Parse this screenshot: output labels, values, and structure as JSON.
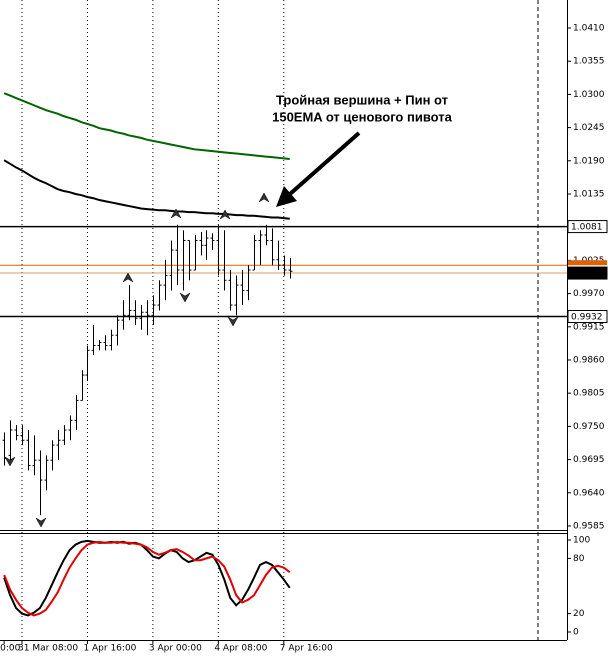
{
  "chart_data": {
    "type": "ohlc",
    "annotation": [
      "Тройная вершина + Пин от",
      "150EMA от ценового пивота"
    ],
    "categories": [
      "0:00",
      null,
      null,
      "31 Mar 08:00",
      null,
      null,
      null,
      null,
      null,
      null,
      null,
      null,
      null,
      null,
      "1 Apr 16:00",
      null,
      null,
      null,
      null,
      null,
      null,
      null,
      null,
      null,
      null,
      "3 Apr 00:00",
      null,
      null,
      null,
      null,
      null,
      null,
      null,
      null,
      null,
      null,
      "4 Apr 08:00",
      null,
      null,
      null,
      null,
      null,
      null,
      null,
      null,
      null,
      null,
      "7 Apr 16:00",
      null
    ],
    "open": [
      0.9727,
      0.9702,
      0.9744,
      0.9735,
      0.9727,
      0.9685,
      0.9694,
      0.9661,
      0.9694,
      0.9719,
      0.9727,
      0.9744,
      0.976,
      0.9793,
      0.9835,
      0.9876,
      0.9884,
      0.9889,
      0.9884,
      0.9901,
      0.9926,
      0.9934,
      0.9942,
      0.9929,
      0.9939,
      0.9934,
      0.9951,
      0.9984,
      1.0,
      1.0042,
      1.0009,
      1.0058,
      1.0009,
      1.0058,
      1.005,
      1.0062,
      1.0058,
      1.0009,
      0.9992,
      0.9951,
      0.9984,
      0.9975,
      1.0009,
      1.0058,
      1.0067,
      1.0058,
      1.0026,
      1.0017,
      1.0009
    ],
    "high": [
      0.974,
      0.976,
      0.9752,
      0.9752,
      0.9744,
      0.9735,
      0.971,
      0.9702,
      0.9727,
      0.9744,
      0.9752,
      0.9768,
      0.9802,
      0.9843,
      0.9884,
      0.9918,
      0.9893,
      0.9901,
      0.991,
      0.9934,
      0.9959,
      0.9984,
      0.9959,
      0.9951,
      0.9959,
      0.9967,
      0.9992,
      1.0026,
      1.0058,
      1.0084,
      1.0075,
      1.0058,
      1.0067,
      1.0072,
      1.0075,
      1.007,
      1.0084,
      1.0075,
      1.0009,
      1.0,
      1.0009,
      1.0017,
      1.0067,
      1.0075,
      1.0084,
      1.0078,
      1.0058,
      1.0033,
      1.0029
    ],
    "low": [
      0.9685,
      0.9694,
      0.9727,
      0.9719,
      0.9677,
      0.9669,
      0.9603,
      0.9644,
      0.9677,
      0.9694,
      0.9719,
      0.9727,
      0.9744,
      0.9793,
      0.9826,
      0.9868,
      0.9876,
      0.9876,
      0.9876,
      0.9884,
      0.991,
      0.9926,
      0.9918,
      0.991,
      0.9901,
      0.9918,
      0.9942,
      0.9959,
      0.9975,
      0.9984,
      0.9975,
      0.9992,
      1.0009,
      1.0033,
      1.0026,
      1.0042,
      1.0,
      0.9975,
      0.9942,
      0.9934,
      0.9951,
      0.9959,
      1.0009,
      1.0017,
      1.005,
      1.0017,
      1.0009,
      1.0,
      0.9995
    ],
    "close": [
      0.9697,
      0.9744,
      0.9735,
      0.9727,
      0.9685,
      0.9694,
      0.9661,
      0.9694,
      0.9719,
      0.9727,
      0.9744,
      0.976,
      0.9793,
      0.9835,
      0.9876,
      0.9884,
      0.9889,
      0.9884,
      0.9901,
      0.9926,
      0.9934,
      0.9942,
      0.9929,
      0.9939,
      0.9934,
      0.9951,
      0.9984,
      1.0,
      1.0042,
      1.0009,
      1.0058,
      1.0009,
      1.0058,
      1.005,
      1.0062,
      1.0058,
      1.0009,
      0.9992,
      0.9951,
      0.9984,
      0.9975,
      1.0009,
      1.0058,
      1.0067,
      1.0058,
      1.0026,
      1.0017,
      1.0009,
      1.0007
    ],
    "color": "#000000",
    "overlays": [
      {
        "color": "#006400",
        "values": [
          1.0302,
          1.0298,
          1.0294,
          1.029,
          1.0286,
          1.0282,
          1.0278,
          1.0274,
          1.0271,
          1.0268,
          1.0264,
          1.0261,
          1.0258,
          1.0254,
          1.0251,
          1.0248,
          1.0244,
          1.0242,
          1.024,
          1.0237,
          1.0235,
          1.0232,
          1.023,
          1.0228,
          1.0225,
          1.0223,
          1.0221,
          1.0219,
          1.0217,
          1.0215,
          1.0213,
          1.0211,
          1.0209,
          1.0208,
          1.0207,
          1.0206,
          1.0205,
          1.0204,
          1.0203,
          1.0202,
          1.0201,
          1.02,
          1.0199,
          1.0198,
          1.0197,
          1.0196,
          1.0195,
          1.0194,
          1.0193
        ]
      },
      {
        "color": "#000000",
        "values": [
          1.0191,
          1.0185,
          1.0179,
          1.0174,
          1.0168,
          1.0162,
          1.0157,
          1.0153,
          1.0148,
          1.0143,
          1.014,
          1.0138,
          1.0135,
          1.0133,
          1.013,
          1.0128,
          1.0125,
          1.0123,
          1.0121,
          1.0119,
          1.0117,
          1.0115,
          1.0113,
          1.0111,
          1.011,
          1.0109,
          1.0108,
          1.0108,
          1.0107,
          1.0106,
          1.0106,
          1.0105,
          1.0105,
          1.0104,
          1.0103,
          1.0103,
          1.0102,
          1.0102,
          1.0101,
          1.01,
          1.01,
          1.0099,
          1.0099,
          1.0098,
          1.0097,
          1.0096,
          1.0096,
          1.0095,
          1.0094
        ]
      }
    ],
    "ylim": [
      0.95783,
      1.04564
    ],
    "yticks": [
      {
        "value": 1.041,
        "label": "1.0410"
      },
      1.0355,
      {
        "value": 1.03,
        "label": "1.0300"
      },
      1.0245,
      {
        "value": 1.019,
        "label": "1.0190"
      },
      1.0135,
      1.0025,
      {
        "value": 0.997,
        "label": "0.9970"
      },
      0.9915,
      {
        "value": 0.986,
        "label": "0.9860"
      },
      0.9805,
      {
        "value": 0.975,
        "label": "0.9750"
      },
      0.9695,
      {
        "value": 0.964,
        "label": "0.9640"
      },
      0.9585
    ],
    "levels": [
      {
        "value": 1.0081,
        "color": "#000000"
      },
      {
        "value": 0.9932,
        "color": "#000000"
      },
      {
        "value": 1.0004,
        "color": "#d2a060"
      }
    ],
    "ask_line": {
      "value": 1.0017,
      "color": "#e06000"
    },
    "stochastic": {
      "ylim": [
        -8.7,
        107.6
      ],
      "yticks": [
        0,
        20,
        80,
        100
      ],
      "lines": [
        {
          "color": "#000000",
          "values": [
            59,
            40,
            26,
            20,
            18,
            21,
            26,
            37,
            51,
            65,
            78,
            89,
            95,
            98,
            99,
            98,
            97,
            97,
            98,
            97,
            98,
            96,
            97,
            95,
            89,
            82,
            80,
            85,
            89,
            87,
            80,
            76,
            78,
            82,
            86,
            84,
            73,
            57,
            37,
            29,
            35,
            46,
            59,
            73,
            76,
            73,
            65,
            57,
            48
          ]
        },
        {
          "color": "#e00000",
          "values": [
            62,
            46,
            35,
            26,
            21,
            18,
            20,
            24,
            33,
            43,
            57,
            70,
            80,
            89,
            95,
            97,
            98,
            97,
            97,
            98,
            97,
            97,
            96,
            95,
            92,
            87,
            84,
            86,
            89,
            90,
            87,
            83,
            78,
            78,
            80,
            82,
            78,
            71,
            57,
            40,
            32,
            35,
            40,
            51,
            62,
            70,
            72,
            70,
            65
          ]
        }
      ]
    }
  }
}
